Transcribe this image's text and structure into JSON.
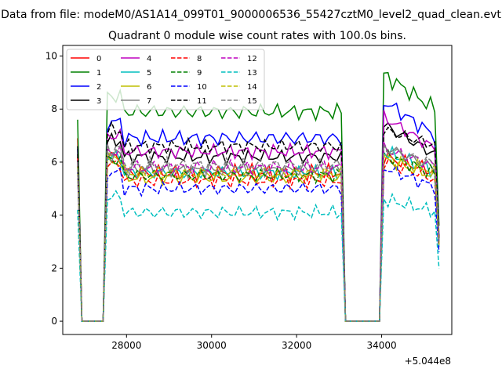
{
  "chart_data": {
    "type": "line",
    "suptitle": "Data from file: modeM0/AS1A14_099T01_9000006536_55427cztM0_level2_quad_clean.evt",
    "title": "Quadrant 0 module wise count rates with 100.0s bins.",
    "xlabel": "",
    "ylabel": "",
    "x_offset_label": "+5.044e8",
    "xlim": [
      26500,
      35650
    ],
    "ylim": [
      -0.5,
      10.4
    ],
    "xticks": [
      28000,
      30000,
      32000,
      34000
    ],
    "xtick_labels": [
      "28000",
      "30000",
      "32000",
      "34000"
    ],
    "yticks": [
      0,
      2,
      4,
      6,
      8,
      10
    ],
    "ytick_labels": [
      "0",
      "2",
      "4",
      "6",
      "8",
      "10"
    ],
    "grid": false,
    "legend_position": "top-left",
    "legend_columns": 4,
    "x_start": 26850,
    "x_step": 100,
    "series": [
      {
        "name": "0",
        "color": "#ff0000",
        "dash": "solid",
        "level": 5.6,
        "amp": 0.35,
        "first": 6.9,
        "post": 6.2,
        "last": 3.0
      },
      {
        "name": "1",
        "color": "#008000",
        "dash": "solid",
        "level": 7.9,
        "amp": 0.35,
        "first": 7.6,
        "post": 9.3,
        "last": 3.6
      },
      {
        "name": "2",
        "color": "#0000ff",
        "dash": "solid",
        "level": 6.9,
        "amp": 0.35,
        "first": 6.5,
        "post": 8.3,
        "last": 3.2
      },
      {
        "name": "3",
        "color": "#000000",
        "dash": "solid",
        "level": 6.2,
        "amp": 0.3,
        "first": 6.6,
        "post": 7.4,
        "last": 3.0
      },
      {
        "name": "4",
        "color": "#bf00bf",
        "dash": "solid",
        "level": 6.4,
        "amp": 0.3,
        "first": 6.1,
        "post": 7.7,
        "last": 3.2
      },
      {
        "name": "5",
        "color": "#00bfbf",
        "dash": "solid",
        "level": 5.6,
        "amp": 0.3,
        "first": 5.8,
        "post": 6.4,
        "last": 2.8
      },
      {
        "name": "6",
        "color": "#bfbf00",
        "dash": "solid",
        "level": 5.4,
        "amp": 0.3,
        "first": 5.7,
        "post": 6.1,
        "last": 2.9
      },
      {
        "name": "7",
        "color": "#808080",
        "dash": "solid",
        "level": 5.7,
        "amp": 0.3,
        "first": 5.9,
        "post": 6.6,
        "last": 3.0
      },
      {
        "name": "8",
        "color": "#ff0000",
        "dash": "dashed",
        "level": 5.3,
        "amp": 0.3,
        "first": 6.2,
        "post": 6.0,
        "last": 2.8
      },
      {
        "name": "9",
        "color": "#008000",
        "dash": "dashed",
        "level": 5.5,
        "amp": 0.3,
        "first": 6.0,
        "post": 6.3,
        "last": 2.9
      },
      {
        "name": "10",
        "color": "#0000ff",
        "dash": "dashed",
        "level": 5.0,
        "amp": 0.3,
        "first": 5.6,
        "post": 5.8,
        "last": 2.6
      },
      {
        "name": "11",
        "color": "#000000",
        "dash": "dashed",
        "level": 6.6,
        "amp": 0.3,
        "first": 6.3,
        "post": 7.2,
        "last": 3.1
      },
      {
        "name": "12",
        "color": "#bf00bf",
        "dash": "dashed",
        "level": 5.8,
        "amp": 0.3,
        "first": 6.0,
        "post": 6.5,
        "last": 2.9
      },
      {
        "name": "13",
        "color": "#00bfbf",
        "dash": "dashed",
        "level": 4.1,
        "amp": 0.3,
        "first": 4.2,
        "post": 4.6,
        "last": 2.0
      },
      {
        "name": "14",
        "color": "#bfbf00",
        "dash": "dashed",
        "level": 5.6,
        "amp": 0.3,
        "first": 5.8,
        "post": 6.2,
        "last": 2.9
      },
      {
        "name": "15",
        "color": "#808080",
        "dash": "dashed",
        "level": 5.9,
        "amp": 0.3,
        "first": 6.0,
        "post": 6.5,
        "last": 3.0
      }
    ]
  }
}
